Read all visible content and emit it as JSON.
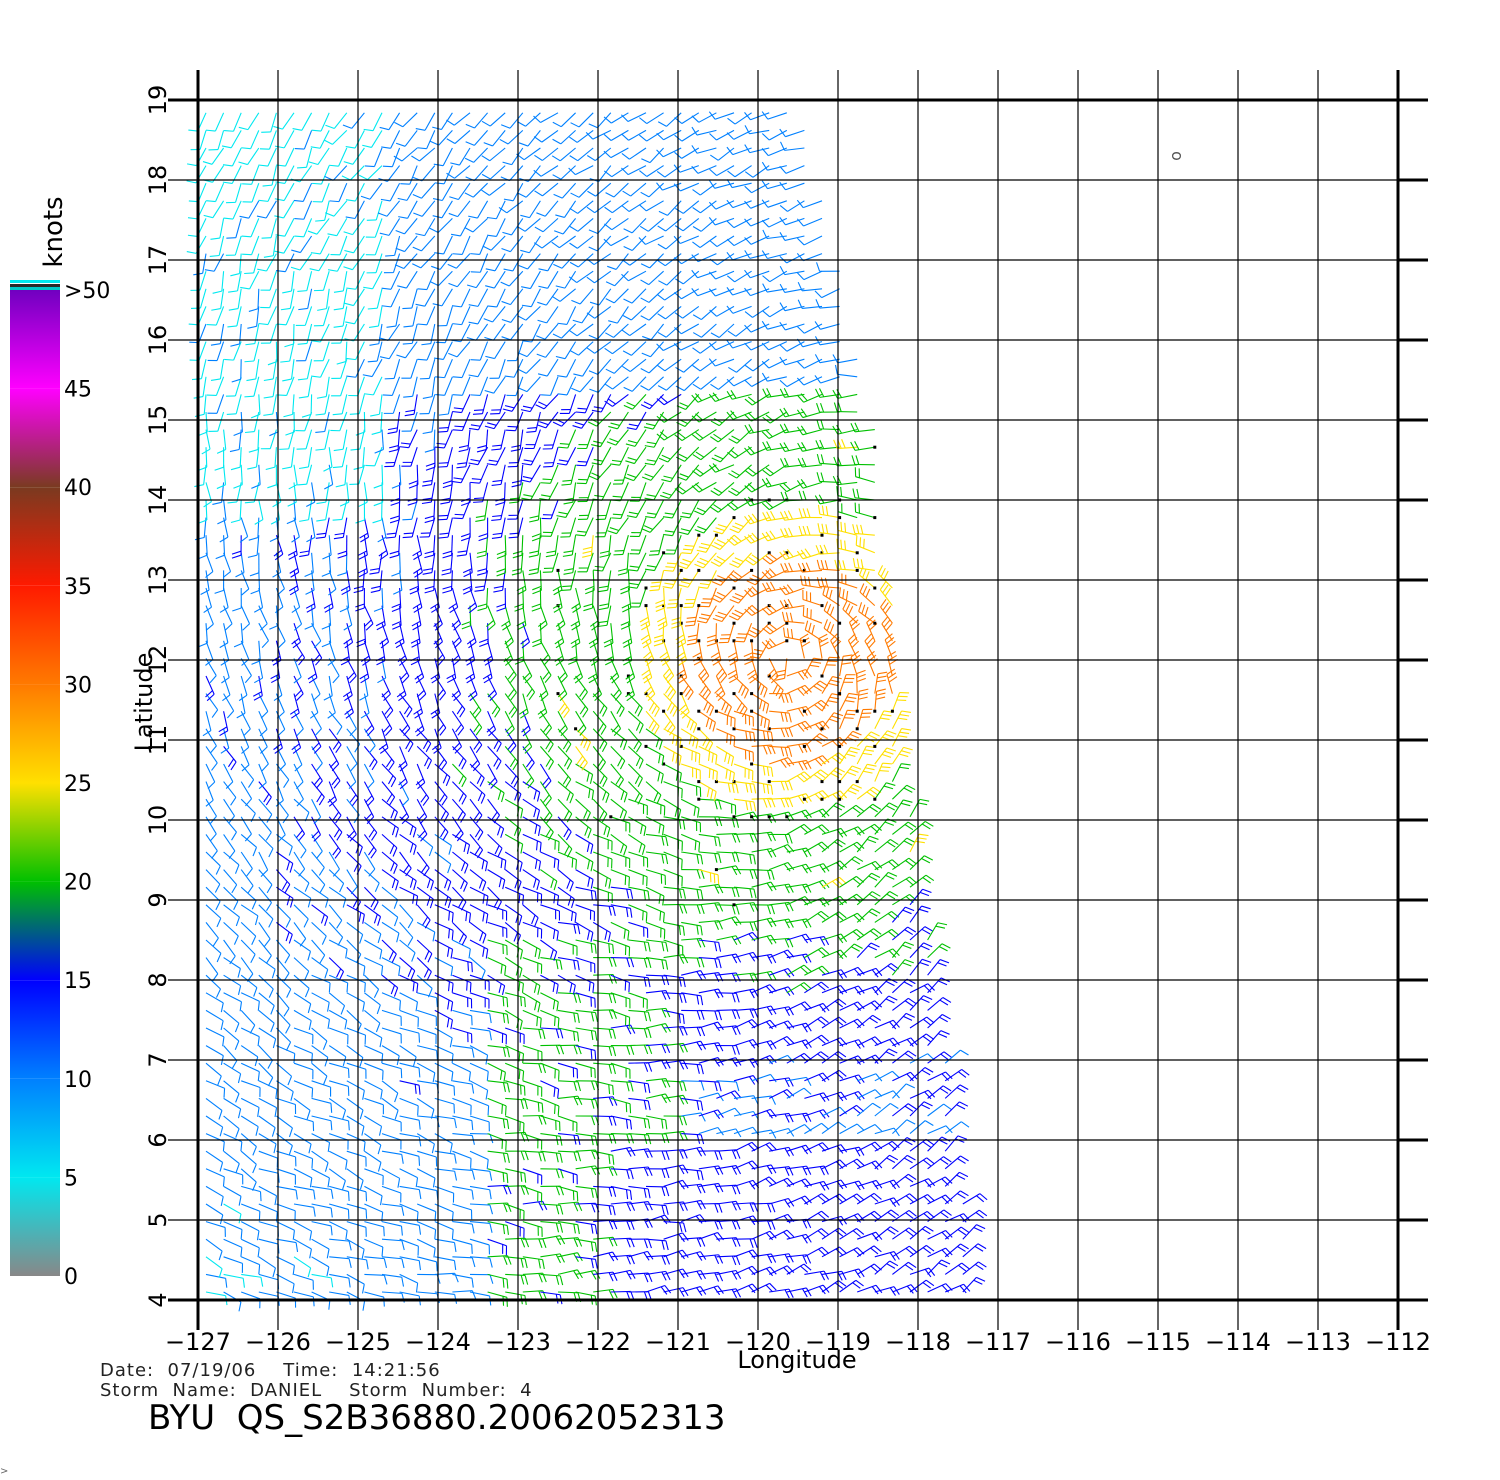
{
  "chart_data": {
    "type": "wind-barb-map",
    "xlabel": "Longitude",
    "ylabel": "Latitude",
    "xlim": [
      -127,
      -112
    ],
    "ylim": [
      4,
      19
    ],
    "x_ticks": [
      "−127",
      "−126",
      "−125",
      "−124",
      "−123",
      "−122",
      "−121",
      "−120",
      "−119",
      "−118",
      "−117",
      "−116",
      "−115",
      "−114",
      "−113",
      "−112"
    ],
    "y_ticks": [
      "4",
      "5",
      "6",
      "7",
      "8",
      "9",
      "10",
      "11",
      "12",
      "13",
      "14",
      "15",
      "16",
      "17",
      "18",
      "19"
    ],
    "grid": true,
    "storm_center": {
      "lon": -119.6,
      "lat": 12.0
    },
    "swath_east_edge": [
      [
        -119.5,
        19
      ],
      [
        -118.4,
        14.5
      ],
      [
        -118.2,
        11
      ],
      [
        -117.3,
        4.3
      ]
    ],
    "legend": {
      "unit": "knots",
      "placement": "left",
      "bands": [
        {
          "label": "0",
          "color": "#888888"
        },
        {
          "label": "5",
          "color": "#00e8f0"
        },
        {
          "label": "10",
          "color": "#0080ff"
        },
        {
          "label": "15",
          "color": "#0000ff"
        },
        {
          "label": "20",
          "color": "#00c000"
        },
        {
          "label": "25",
          "color": "#ffe000"
        },
        {
          "label": "30",
          "color": "#ff7a00"
        },
        {
          "label": "35",
          "color": "#ff1a00"
        },
        {
          "label": "40",
          "color": "#7a3a20"
        },
        {
          "label": "45",
          "color": "#ff00ff"
        },
        {
          "label": ">50",
          "color": "#7000c0"
        }
      ]
    },
    "annotation": "o"
  },
  "caption": {
    "date_line": "Date:  07/19/06    Time:  14:21:56",
    "storm_line": "Storm  Name:  DANIEL    Storm  Number:  4",
    "file_line": "BYU  QS_S2B36880.20062052313"
  },
  "footer_glyph": ">"
}
